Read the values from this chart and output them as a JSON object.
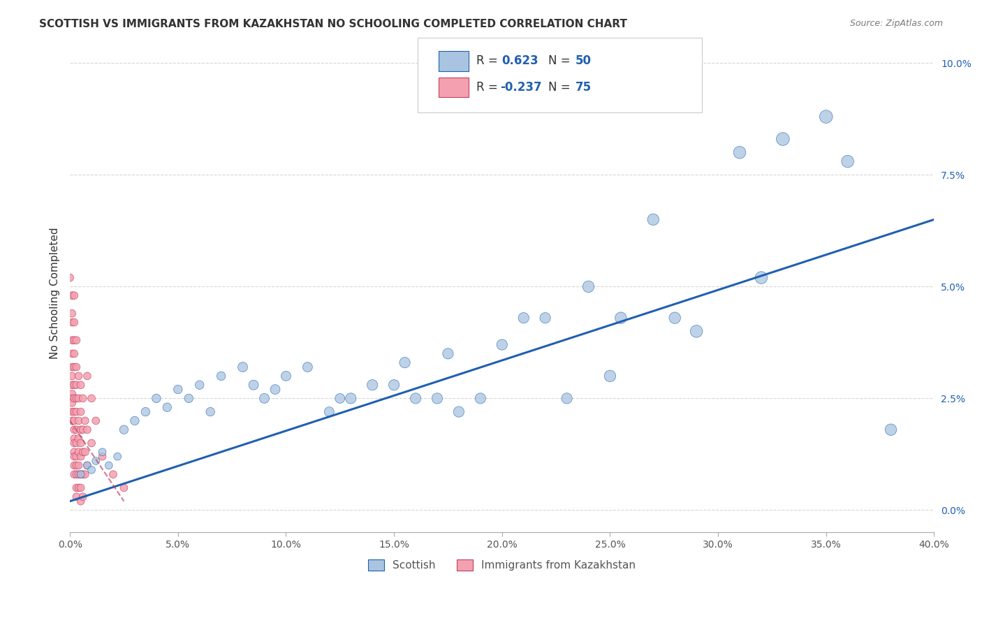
{
  "title": "SCOTTISH VS IMMIGRANTS FROM KAZAKHSTAN NO SCHOOLING COMPLETED CORRELATION CHART",
  "source": "Source: ZipAtlas.com",
  "xlabel": "",
  "ylabel": "No Schooling Completed",
  "xlim": [
    0,
    0.4
  ],
  "ylim": [
    -0.005,
    0.102
  ],
  "xticks": [
    0.0,
    0.05,
    0.1,
    0.15,
    0.2,
    0.25,
    0.3,
    0.35,
    0.4
  ],
  "yticks": [
    0.0,
    0.025,
    0.05,
    0.075,
    0.1
  ],
  "blue_R": 0.623,
  "blue_N": 50,
  "pink_R": -0.237,
  "pink_N": 75,
  "blue_color": "#a8c4e0",
  "pink_color": "#f4a0b0",
  "blue_line_color": "#2060b0",
  "pink_line_color": "#c04060",
  "background_color": "#ffffff",
  "grid_color": "#cccccc",
  "legend_label_blue": "Scottish",
  "legend_label_pink": "Immigrants from Kazakhstan",
  "blue_scatter": [
    [
      0.005,
      0.008
    ],
    [
      0.008,
      0.01
    ],
    [
      0.01,
      0.009
    ],
    [
      0.012,
      0.011
    ],
    [
      0.015,
      0.013
    ],
    [
      0.018,
      0.01
    ],
    [
      0.022,
      0.012
    ],
    [
      0.025,
      0.018
    ],
    [
      0.03,
      0.02
    ],
    [
      0.035,
      0.022
    ],
    [
      0.04,
      0.025
    ],
    [
      0.045,
      0.023
    ],
    [
      0.05,
      0.027
    ],
    [
      0.055,
      0.025
    ],
    [
      0.06,
      0.028
    ],
    [
      0.065,
      0.022
    ],
    [
      0.07,
      0.03
    ],
    [
      0.08,
      0.032
    ],
    [
      0.085,
      0.028
    ],
    [
      0.09,
      0.025
    ],
    [
      0.095,
      0.027
    ],
    [
      0.1,
      0.03
    ],
    [
      0.11,
      0.032
    ],
    [
      0.12,
      0.022
    ],
    [
      0.125,
      0.025
    ],
    [
      0.13,
      0.025
    ],
    [
      0.14,
      0.028
    ],
    [
      0.15,
      0.028
    ],
    [
      0.155,
      0.033
    ],
    [
      0.16,
      0.025
    ],
    [
      0.17,
      0.025
    ],
    [
      0.175,
      0.035
    ],
    [
      0.18,
      0.022
    ],
    [
      0.19,
      0.025
    ],
    [
      0.2,
      0.037
    ],
    [
      0.21,
      0.043
    ],
    [
      0.22,
      0.043
    ],
    [
      0.23,
      0.025
    ],
    [
      0.24,
      0.05
    ],
    [
      0.25,
      0.03
    ],
    [
      0.255,
      0.043
    ],
    [
      0.27,
      0.065
    ],
    [
      0.28,
      0.043
    ],
    [
      0.29,
      0.04
    ],
    [
      0.31,
      0.08
    ],
    [
      0.32,
      0.052
    ],
    [
      0.33,
      0.083
    ],
    [
      0.35,
      0.088
    ],
    [
      0.36,
      0.078
    ],
    [
      0.38,
      0.018
    ]
  ],
  "pink_scatter": [
    [
      0.0,
      0.052
    ],
    [
      0.001,
      0.048
    ],
    [
      0.001,
      0.044
    ],
    [
      0.001,
      0.042
    ],
    [
      0.001,
      0.038
    ],
    [
      0.001,
      0.035
    ],
    [
      0.001,
      0.032
    ],
    [
      0.001,
      0.03
    ],
    [
      0.001,
      0.028
    ],
    [
      0.001,
      0.026
    ],
    [
      0.001,
      0.025
    ],
    [
      0.001,
      0.024
    ],
    [
      0.001,
      0.022
    ],
    [
      0.001,
      0.02
    ],
    [
      0.002,
      0.048
    ],
    [
      0.002,
      0.042
    ],
    [
      0.002,
      0.038
    ],
    [
      0.002,
      0.035
    ],
    [
      0.002,
      0.032
    ],
    [
      0.002,
      0.028
    ],
    [
      0.002,
      0.025
    ],
    [
      0.002,
      0.022
    ],
    [
      0.002,
      0.02
    ],
    [
      0.002,
      0.018
    ],
    [
      0.002,
      0.016
    ],
    [
      0.002,
      0.015
    ],
    [
      0.002,
      0.013
    ],
    [
      0.002,
      0.012
    ],
    [
      0.002,
      0.01
    ],
    [
      0.002,
      0.008
    ],
    [
      0.003,
      0.038
    ],
    [
      0.003,
      0.032
    ],
    [
      0.003,
      0.028
    ],
    [
      0.003,
      0.025
    ],
    [
      0.003,
      0.022
    ],
    [
      0.003,
      0.018
    ],
    [
      0.003,
      0.015
    ],
    [
      0.003,
      0.012
    ],
    [
      0.003,
      0.01
    ],
    [
      0.003,
      0.008
    ],
    [
      0.003,
      0.005
    ],
    [
      0.003,
      0.003
    ],
    [
      0.004,
      0.03
    ],
    [
      0.004,
      0.025
    ],
    [
      0.004,
      0.02
    ],
    [
      0.004,
      0.016
    ],
    [
      0.004,
      0.013
    ],
    [
      0.004,
      0.01
    ],
    [
      0.004,
      0.008
    ],
    [
      0.004,
      0.005
    ],
    [
      0.005,
      0.028
    ],
    [
      0.005,
      0.022
    ],
    [
      0.005,
      0.018
    ],
    [
      0.005,
      0.015
    ],
    [
      0.005,
      0.012
    ],
    [
      0.005,
      0.008
    ],
    [
      0.005,
      0.005
    ],
    [
      0.005,
      0.002
    ],
    [
      0.006,
      0.025
    ],
    [
      0.006,
      0.018
    ],
    [
      0.006,
      0.013
    ],
    [
      0.006,
      0.008
    ],
    [
      0.006,
      0.003
    ],
    [
      0.007,
      0.02
    ],
    [
      0.007,
      0.013
    ],
    [
      0.007,
      0.008
    ],
    [
      0.008,
      0.03
    ],
    [
      0.008,
      0.018
    ],
    [
      0.008,
      0.01
    ],
    [
      0.01,
      0.025
    ],
    [
      0.01,
      0.015
    ],
    [
      0.012,
      0.02
    ],
    [
      0.015,
      0.012
    ],
    [
      0.02,
      0.008
    ],
    [
      0.025,
      0.005
    ]
  ],
  "blue_sizes": [
    60,
    60,
    60,
    60,
    60,
    60,
    60,
    80,
    80,
    80,
    80,
    80,
    80,
    80,
    80,
    80,
    80,
    100,
    100,
    100,
    100,
    100,
    100,
    100,
    100,
    120,
    120,
    120,
    120,
    120,
    120,
    120,
    120,
    120,
    120,
    120,
    120,
    120,
    140,
    140,
    140,
    140,
    140,
    160,
    160,
    160,
    180,
    180,
    160,
    140
  ],
  "pink_sizes": [
    60,
    60,
    60,
    60,
    60,
    60,
    60,
    60,
    60,
    60,
    60,
    60,
    60,
    60,
    60,
    60,
    60,
    60,
    60,
    60,
    60,
    60,
    60,
    60,
    60,
    60,
    60,
    60,
    60,
    60,
    60,
    60,
    60,
    60,
    60,
    60,
    60,
    60,
    60,
    60,
    60,
    60,
    60,
    60,
    60,
    60,
    60,
    60,
    60,
    60,
    60,
    60,
    60,
    60,
    60,
    60,
    60,
    60,
    60,
    60,
    60,
    60,
    60,
    60,
    60,
    60,
    60,
    60,
    60,
    60,
    60,
    60,
    60,
    60,
    60
  ]
}
